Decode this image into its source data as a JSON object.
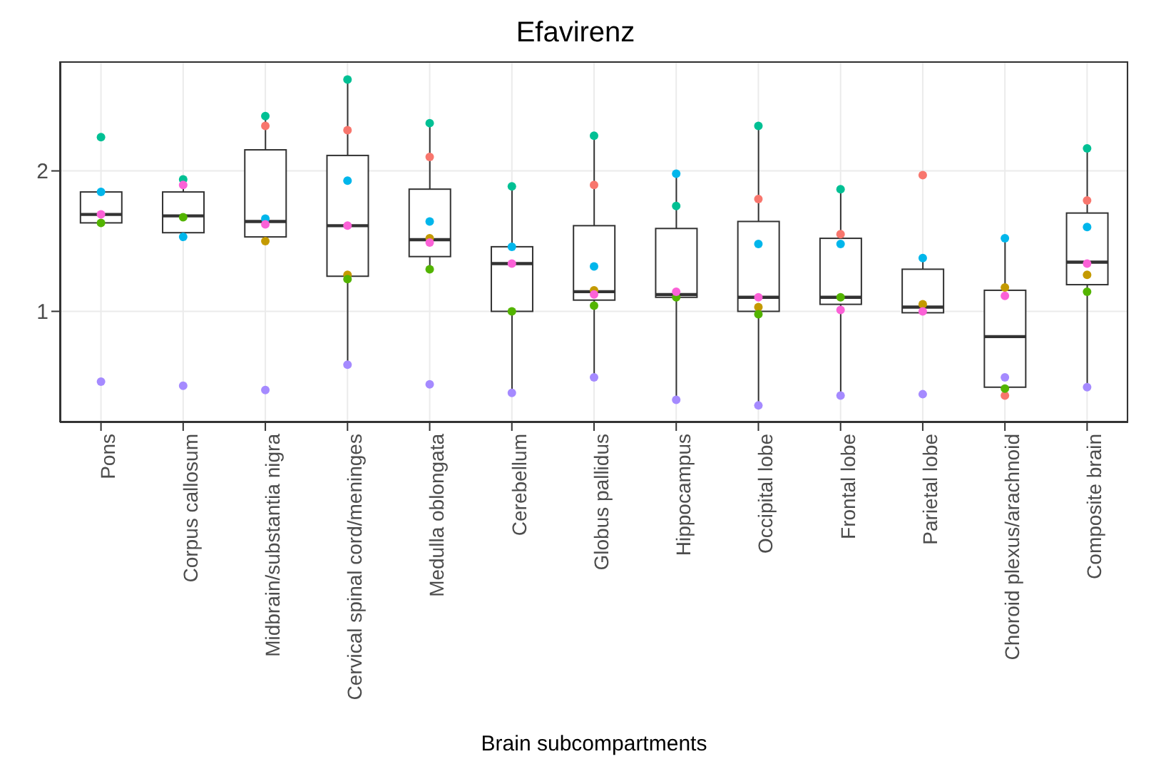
{
  "chart_data": {
    "type": "box",
    "title": "Efavirenz",
    "xlabel": "Brain subcompartments",
    "categories": [
      "Pons",
      "Corpus callosum",
      "Midbrain/substantia nigra",
      "Cervical spinal cord/meninges",
      "Medulla oblongata",
      "Cerebellum",
      "Globus pallidus",
      "Hippocampus",
      "Occipital lobe",
      "Frontal lobe",
      "Parietal lobe",
      "Choroid plexus/arachnoid",
      "Composite brain"
    ],
    "boxes": [
      {
        "low": 1.63,
        "q1": 1.63,
        "median": 1.69,
        "q3": 1.85,
        "high": 1.85
      },
      {
        "low": 1.53,
        "q1": 1.56,
        "median": 1.68,
        "q3": 1.85,
        "high": 1.94
      },
      {
        "low": 1.5,
        "q1": 1.53,
        "median": 1.64,
        "q3": 2.15,
        "high": 2.39
      },
      {
        "low": 0.62,
        "q1": 1.25,
        "median": 1.61,
        "q3": 2.11,
        "high": 2.65
      },
      {
        "low": 1.3,
        "q1": 1.39,
        "median": 1.51,
        "q3": 1.87,
        "high": 2.34
      },
      {
        "low": 0.42,
        "q1": 1.0,
        "median": 1.34,
        "q3": 1.46,
        "high": 1.89
      },
      {
        "low": 0.53,
        "q1": 1.08,
        "median": 1.14,
        "q3": 1.61,
        "high": 2.25
      },
      {
        "low": 0.37,
        "q1": 1.1,
        "median": 1.12,
        "q3": 1.59,
        "high": 1.98
      },
      {
        "low": 0.33,
        "q1": 1.0,
        "median": 1.1,
        "q3": 1.64,
        "high": 2.32
      },
      {
        "low": 0.4,
        "q1": 1.05,
        "median": 1.1,
        "q3": 1.52,
        "high": 1.87
      },
      {
        "low": 0.99,
        "q1": 0.99,
        "median": 1.03,
        "q3": 1.3,
        "high": 1.38
      },
      {
        "low": 0.4,
        "q1": 0.46,
        "median": 0.82,
        "q3": 1.15,
        "high": 1.52
      },
      {
        "low": 0.46,
        "q1": 1.19,
        "median": 1.35,
        "q3": 1.7,
        "high": 2.16
      }
    ],
    "series": [
      {
        "type": "scatter",
        "color": "#f8766d",
        "values": [
          null,
          null,
          2.32,
          2.29,
          2.1,
          null,
          1.9,
          null,
          1.8,
          1.55,
          1.97,
          0.4,
          1.79
        ]
      },
      {
        "type": "scatter",
        "color": "#c49a00",
        "values": [
          null,
          null,
          1.5,
          1.26,
          1.52,
          null,
          1.15,
          null,
          1.03,
          null,
          1.05,
          1.17,
          1.26
        ]
      },
      {
        "type": "scatter",
        "color": "#53b400",
        "values": [
          1.63,
          1.67,
          null,
          1.23,
          1.3,
          1.0,
          1.04,
          1.1,
          0.98,
          1.1,
          null,
          0.45,
          1.14
        ]
      },
      {
        "type": "scatter",
        "color": "#00c094",
        "values": [
          2.24,
          1.94,
          2.39,
          2.65,
          2.34,
          1.89,
          2.25,
          1.75,
          2.32,
          1.87,
          null,
          null,
          2.16
        ]
      },
      {
        "type": "scatter",
        "color": "#00b6eb",
        "values": [
          1.85,
          1.53,
          1.66,
          1.93,
          1.64,
          1.46,
          1.32,
          1.98,
          1.48,
          1.48,
          1.38,
          1.52,
          1.6
        ]
      },
      {
        "type": "scatter",
        "color": "#a58aff",
        "values": [
          0.5,
          0.47,
          0.44,
          0.62,
          0.48,
          0.42,
          0.53,
          0.37,
          0.33,
          0.4,
          0.41,
          0.53,
          0.46
        ]
      },
      {
        "type": "scatter",
        "color": "#fb61d7",
        "values": [
          1.69,
          1.9,
          1.62,
          1.61,
          1.49,
          1.34,
          1.12,
          1.14,
          1.1,
          1.01,
          1.0,
          1.11,
          1.34
        ]
      }
    ],
    "ylim": [
      0.21,
      2.78
    ],
    "yticks": [
      1,
      2
    ],
    "grid": true,
    "legend": false
  }
}
